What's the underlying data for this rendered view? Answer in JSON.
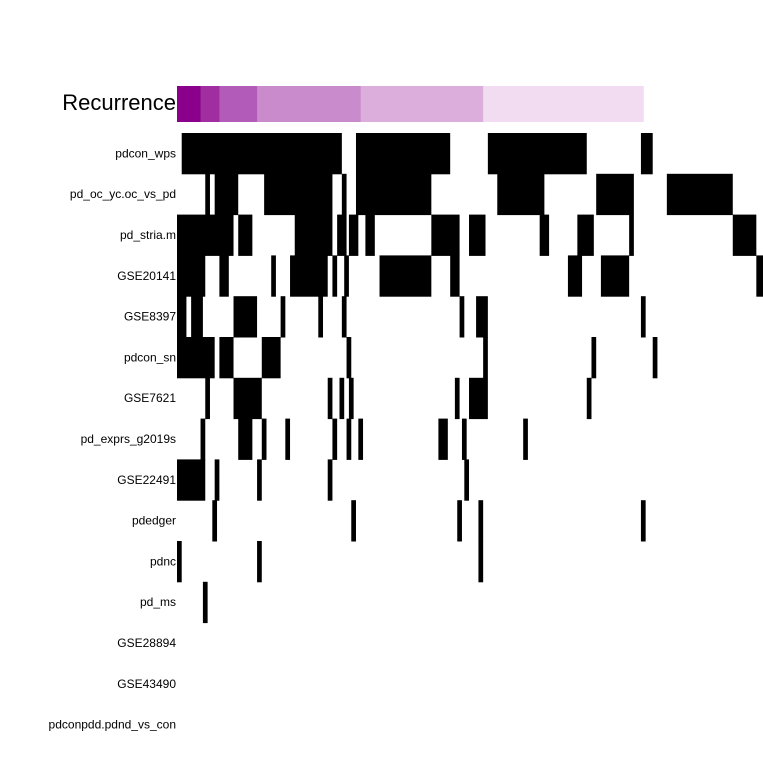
{
  "chart_data": {
    "type": "heatmap",
    "annotation": {
      "label": "Recurrence",
      "levels": [
        {
          "color": "#8b008b",
          "width": 0.5
        },
        {
          "color": "#a02ea0",
          "width": 0.4
        },
        {
          "color": "#b35bb8",
          "width": 0.8
        },
        {
          "color": "#c98bcb",
          "width": 2.2
        },
        {
          "color": "#dbaedb",
          "width": 2.6
        },
        {
          "color": "#f1dcf1",
          "width": 3.4
        }
      ]
    },
    "rows": [
      {
        "label": "pdcon_wps",
        "runs": [
          [
            0.1,
            3.5
          ],
          [
            3.8,
            5.8
          ],
          [
            6.6,
            8.7
          ],
          [
            9.85,
            10.1
          ]
        ]
      },
      {
        "label": "pd_oc_yc.oc_vs_pd",
        "runs": [
          [
            0.6,
            0.7
          ],
          [
            0.8,
            1.3
          ],
          [
            1.85,
            3.3
          ],
          [
            3.5,
            3.6
          ],
          [
            3.8,
            5.4
          ],
          [
            6.8,
            7.8
          ],
          [
            8.9,
            9.7
          ],
          [
            10.4,
            11.8
          ]
        ]
      },
      {
        "label": "pd_stria.m",
        "runs": [
          [
            0.0,
            1.2
          ],
          [
            1.3,
            1.6
          ],
          [
            2.5,
            3.3
          ],
          [
            3.4,
            3.6
          ],
          [
            3.65,
            3.85
          ],
          [
            4.0,
            4.2
          ],
          [
            5.4,
            6.0
          ],
          [
            6.2,
            6.55
          ],
          [
            7.7,
            7.9
          ],
          [
            8.5,
            8.85
          ],
          [
            9.6,
            9.7
          ],
          [
            11.8,
            12.3
          ]
        ]
      },
      {
        "label": "GSE20141",
        "runs": [
          [
            0.0,
            0.6
          ],
          [
            0.9,
            1.1
          ],
          [
            2.0,
            2.1
          ],
          [
            2.4,
            3.2
          ],
          [
            3.3,
            3.4
          ],
          [
            3.55,
            3.65
          ],
          [
            4.3,
            5.4
          ],
          [
            5.8,
            6.0
          ],
          [
            8.3,
            8.6
          ],
          [
            9.0,
            9.6
          ],
          [
            12.3,
            12.6
          ]
        ]
      },
      {
        "label": "GSE8397",
        "runs": [
          [
            0.0,
            0.2
          ],
          [
            0.3,
            0.55
          ],
          [
            1.2,
            1.7
          ],
          [
            2.2,
            2.3
          ],
          [
            3.0,
            3.1
          ],
          [
            3.5,
            3.6
          ],
          [
            6.0,
            6.1
          ],
          [
            6.35,
            6.6
          ],
          [
            9.85,
            9.95
          ]
        ]
      },
      {
        "label": "pdcon_sn",
        "runs": [
          [
            0.0,
            0.8
          ],
          [
            0.9,
            1.2
          ],
          [
            1.8,
            2.2
          ],
          [
            3.6,
            3.7
          ],
          [
            6.5,
            6.6
          ],
          [
            8.8,
            8.9
          ],
          [
            10.1,
            10.2
          ]
        ]
      },
      {
        "label": "GSE7621",
        "runs": [
          [
            0.6,
            0.7
          ],
          [
            1.2,
            1.8
          ],
          [
            3.2,
            3.3
          ],
          [
            3.45,
            3.55
          ],
          [
            3.65,
            3.75
          ],
          [
            5.9,
            6.0
          ],
          [
            6.2,
            6.6
          ],
          [
            8.7,
            8.8
          ]
        ]
      },
      {
        "label": "pd_exprs_g2019s",
        "runs": [
          [
            0.5,
            0.6
          ],
          [
            1.3,
            1.6
          ],
          [
            1.8,
            1.9
          ],
          [
            2.3,
            2.4
          ],
          [
            3.3,
            3.4
          ],
          [
            3.6,
            3.7
          ],
          [
            3.85,
            3.95
          ],
          [
            5.55,
            5.75
          ],
          [
            6.05,
            6.15
          ],
          [
            7.35,
            7.45
          ]
        ]
      },
      {
        "label": "GSE22491",
        "runs": [
          [
            0.0,
            0.6
          ],
          [
            0.8,
            0.9
          ],
          [
            1.7,
            1.8
          ],
          [
            3.2,
            3.3
          ],
          [
            6.1,
            6.2
          ]
        ]
      },
      {
        "label": "pdedger",
        "runs": [
          [
            0.75,
            0.85
          ],
          [
            3.7,
            3.8
          ],
          [
            5.95,
            6.05
          ],
          [
            6.4,
            6.5
          ],
          [
            9.85,
            9.95
          ]
        ]
      },
      {
        "label": "pdnc",
        "runs": [
          [
            0.0,
            0.1
          ],
          [
            1.7,
            1.8
          ],
          [
            6.4,
            6.5
          ]
        ]
      },
      {
        "label": "pd_ms",
        "runs": [
          [
            0.55,
            0.65
          ]
        ]
      },
      {
        "label": "GSE28894",
        "runs": []
      },
      {
        "label": "GSE43490",
        "runs": []
      },
      {
        "label": "pdconpdd.pdnd_vs_con",
        "runs": []
      }
    ],
    "value_colors": {
      "present": "#000000",
      "absent": "#ffffff"
    }
  }
}
